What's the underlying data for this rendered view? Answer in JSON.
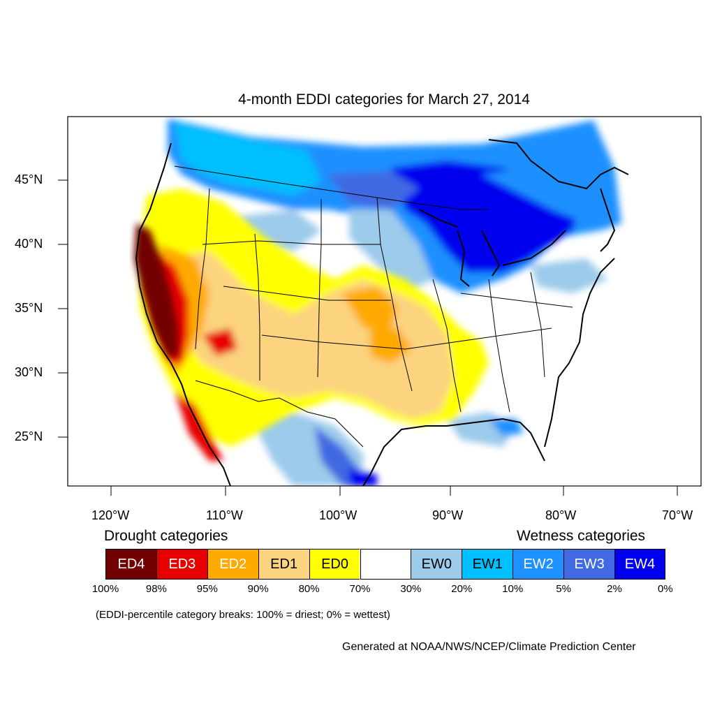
{
  "title": "4-month EDDI categories for March 27, 2014",
  "lat_labels": [
    "45°N",
    "40°N",
    "35°N",
    "30°N",
    "25°N"
  ],
  "lon_labels": [
    "120°W",
    "110°W",
    "100°W",
    "90°W",
    "80°W",
    "70°W"
  ],
  "legend": {
    "drought_heading": "Drought categories",
    "wetness_heading": "Wetness categories",
    "categories": [
      {
        "label": "ED4",
        "color": "#730000",
        "text_color": "#ffffff"
      },
      {
        "label": "ED3",
        "color": "#e60000",
        "text_color": "#ffffff"
      },
      {
        "label": "ED2",
        "color": "#ffaa00",
        "text_color": "#ffffff"
      },
      {
        "label": "ED1",
        "color": "#fcd37f",
        "text_color": "#000000"
      },
      {
        "label": "ED0",
        "color": "#ffff00",
        "text_color": "#000000"
      },
      {
        "label": "",
        "color": "#ffffff",
        "text_color": "#000000"
      },
      {
        "label": "EW0",
        "color": "#9ccbeb",
        "text_color": "#000000"
      },
      {
        "label": "EW1",
        "color": "#00bfff",
        "text_color": "#000000"
      },
      {
        "label": "EW2",
        "color": "#1e90ff",
        "text_color": "#ffffff"
      },
      {
        "label": "EW3",
        "color": "#4169e1",
        "text_color": "#ffffff"
      },
      {
        "label": "EW4",
        "color": "#0000ee",
        "text_color": "#ffffff"
      }
    ],
    "breaks": [
      "100%",
      "98%",
      "95%",
      "90%",
      "80%",
      "70%",
      "30%",
      "20%",
      "10%",
      "5%",
      "2%",
      "0%"
    ],
    "note": "(EDDI-percentile category breaks: 100% = driest; 0% = wettest)"
  },
  "credit": "Generated at NOAA/NWS/NCEP/Climate Prediction Center"
}
